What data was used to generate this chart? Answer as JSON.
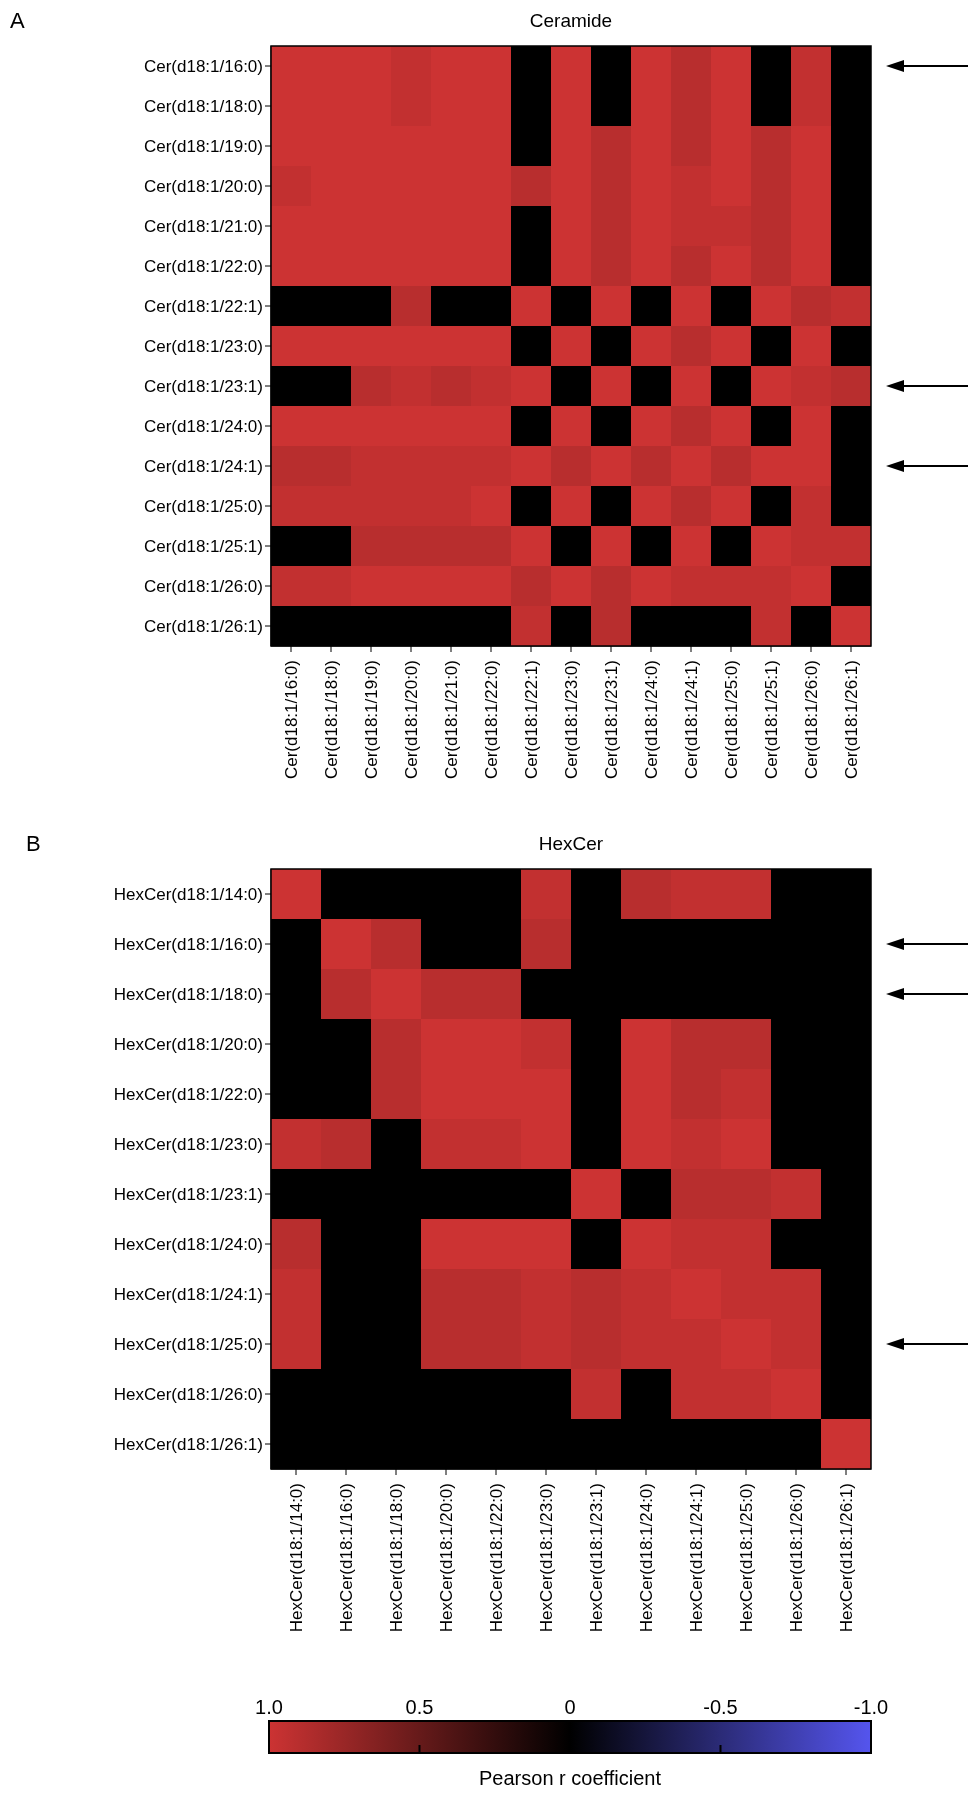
{
  "chart_data": [
    {
      "type": "heatmap",
      "title": "Ceramide",
      "annotations": [
        "A"
      ],
      "categories": [
        "Cer(d18:1/16:0)",
        "Cer(d18:1/18:0)",
        "Cer(d18:1/19:0)",
        "Cer(d18:1/20:0)",
        "Cer(d18:1/21:0)",
        "Cer(d18:1/22:0)",
        "Cer(d18:1/22:1)",
        "Cer(d18:1/23:0)",
        "Cer(d18:1/23:1)",
        "Cer(d18:1/24:0)",
        "Cer(d18:1/24:1)",
        "Cer(d18:1/25:0)",
        "Cer(d18:1/25:1)",
        "Cer(d18:1/26:0)",
        "Cer(d18:1/26:1)"
      ],
      "y_categories": [
        "Cer(d18:1/16:0)",
        "Cer(d18:1/18:0)",
        "Cer(d18:1/19:0)",
        "Cer(d18:1/20:0)",
        "Cer(d18:1/21:0)",
        "Cer(d18:1/22:0)",
        "Cer(d18:1/22:1)",
        "Cer(d18:1/23:0)",
        "Cer(d18:1/23:1)",
        "Cer(d18:1/24:0)",
        "Cer(d18:1/24:1)",
        "Cer(d18:1/25:0)",
        "Cer(d18:1/25:1)",
        "Cer(d18:1/26:0)",
        "Cer(d18:1/26:1)"
      ],
      "cells": [
        [
          1,
          1,
          1,
          0.95,
          1,
          1,
          0,
          1,
          0,
          1,
          0.9,
          1,
          0,
          0.95,
          0
        ],
        [
          1,
          1,
          1,
          0.95,
          1,
          1,
          0,
          1,
          0,
          1,
          0.9,
          1,
          0,
          0.95,
          0
        ],
        [
          1,
          1,
          1,
          1,
          1,
          1,
          0,
          1,
          0.9,
          1,
          0.9,
          1,
          0.9,
          1,
          0
        ],
        [
          0.95,
          1,
          1,
          1,
          1,
          1,
          0.9,
          1,
          0.9,
          1,
          0.95,
          1,
          0.9,
          1,
          0
        ],
        [
          1,
          1,
          1,
          1,
          1,
          1,
          0,
          1,
          0.9,
          1,
          0.95,
          0.95,
          0.9,
          1,
          0
        ],
        [
          1,
          1,
          1,
          1,
          1,
          1,
          0,
          1,
          0.9,
          1,
          0.9,
          1,
          0.9,
          1,
          0
        ],
        [
          0,
          0,
          0,
          0.9,
          0,
          0,
          1,
          0,
          1,
          0,
          1,
          0,
          1,
          0.9,
          0.95
        ],
        [
          1,
          1,
          1,
          1,
          1,
          1,
          0,
          1,
          0,
          1,
          0.9,
          1,
          0,
          1,
          0
        ],
        [
          0,
          0,
          0.9,
          0.95,
          0.9,
          0.95,
          1,
          0,
          1,
          0,
          1,
          0,
          1,
          0.95,
          0.9
        ],
        [
          1,
          1,
          1,
          1,
          1,
          1,
          0,
          1,
          0,
          1,
          0.9,
          1,
          0,
          1,
          0
        ],
        [
          0.9,
          0.9,
          0.95,
          0.95,
          0.95,
          0.95,
          1,
          0.9,
          1,
          0.9,
          1,
          0.9,
          1,
          1,
          0
        ],
        [
          0.95,
          0.95,
          0.95,
          0.95,
          0.95,
          1,
          0,
          1,
          0,
          1,
          0.9,
          1,
          0,
          0.95,
          0
        ],
        [
          0,
          0,
          0.9,
          0.9,
          0.9,
          0.9,
          1,
          0,
          1,
          0,
          1,
          0,
          1,
          0.95,
          0.95
        ],
        [
          0.95,
          0.95,
          1,
          1,
          1,
          1,
          0.9,
          1,
          0.9,
          1,
          0.95,
          0.95,
          0.95,
          1,
          0
        ],
        [
          0,
          0,
          0,
          0,
          0,
          0,
          0.95,
          0,
          0.9,
          0,
          0,
          0,
          0.95,
          0,
          1
        ]
      ],
      "clim": [
        1,
        -1
      ],
      "cticks": [
        {
          "value": 1,
          "label": "1.0"
        },
        0,
        {
          "value": -1,
          "label": "-1.0"
        }
      ]
    },
    {
      "type": "heatmap",
      "title": "HexCer",
      "annotations": [
        "B"
      ],
      "categories": [
        "HexCer(d18:1/14:0)",
        "HexCer(d18:1/16:0)",
        "HexCer(d18:1/18:0)",
        "HexCer(d18:1/20:0)",
        "HexCer(d18:1/22:0)",
        "HexCer(d18:1/23:0)",
        "HexCer(d18:1/23:1)",
        "HexCer(d18:1/24:0)",
        "HexCer(d18:1/24:1)",
        "HexCer(d18:1/25:0)",
        "HexCer(d18:1/26:0)",
        "HexCer(d18:1/26:1)"
      ],
      "y_categories": [
        "HexCer(d18:1/14:0)",
        "HexCer(d18:1/16:0)",
        "HexCer(d18:1/18:0)",
        "HexCer(d18:1/20:0)",
        "HexCer(d18:1/22:0)",
        "HexCer(d18:1/23:0)",
        "HexCer(d18:1/23:1)",
        "HexCer(d18:1/24:0)",
        "HexCer(d18:1/24:1)",
        "HexCer(d18:1/25:0)",
        "HexCer(d18:1/26:0)",
        "HexCer(d18:1/26:1)"
      ],
      "cells": [
        [
          1,
          0,
          0,
          0,
          0,
          0.95,
          0,
          0.9,
          0.95,
          0.95,
          0,
          0
        ],
        [
          0,
          1,
          0.9,
          0,
          0,
          0.9,
          0,
          0,
          0,
          0,
          0,
          0
        ],
        [
          0,
          0.9,
          1,
          0.9,
          0.9,
          0,
          0,
          0,
          0,
          0,
          0,
          0
        ],
        [
          0,
          0,
          0.9,
          1,
          1,
          0.95,
          0,
          1,
          0.9,
          0.9,
          0,
          0
        ],
        [
          0,
          0,
          0.9,
          1,
          1,
          1,
          0,
          1,
          0.9,
          0.95,
          0,
          0
        ],
        [
          0.95,
          0.9,
          0,
          0.95,
          0.95,
          1,
          0,
          1,
          0.95,
          1,
          0,
          0
        ],
        [
          0,
          0,
          0,
          0,
          0,
          0,
          1,
          0,
          0.9,
          0.9,
          0.95,
          0
        ],
        [
          0.9,
          0,
          0,
          1,
          1,
          1,
          0,
          1,
          0.95,
          0.95,
          0,
          0
        ],
        [
          0.95,
          0,
          0,
          0.9,
          0.9,
          0.95,
          0.9,
          0.95,
          1,
          0.95,
          0.95,
          0
        ],
        [
          0.95,
          0,
          0,
          0.9,
          0.9,
          0.95,
          0.9,
          0.95,
          0.95,
          1,
          0.95,
          0
        ],
        [
          0,
          0,
          0,
          0,
          0,
          0,
          0.95,
          0,
          0.95,
          0.95,
          1,
          0
        ],
        [
          0,
          0,
          0,
          0,
          0,
          0,
          0,
          0,
          0,
          0,
          0,
          1
        ]
      ],
      "clabel": "Pearson r coefficient",
      "clim": [
        1,
        -1
      ],
      "cticks": [
        0.5,
        -0.5
      ]
    }
  ]
}
